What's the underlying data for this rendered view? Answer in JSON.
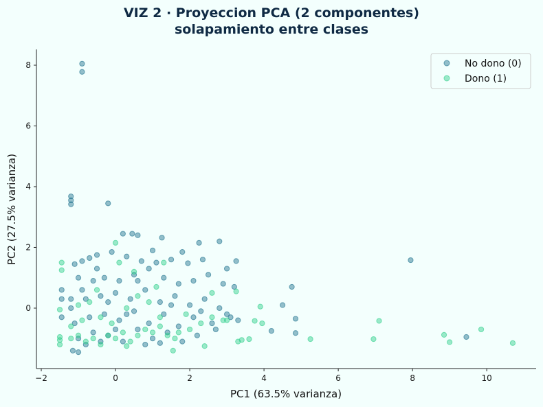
{
  "chart_data": {
    "type": "scatter",
    "title": "VIZ 2 · Proyeccion PCA (2 componentes)",
    "subtitle": "solapamiento entre clases",
    "x_label": "PC1 (63.5% varianza)",
    "y_label": "PC2 (27.5% varianza)",
    "xlim": [
      -2.13,
      11.33
    ],
    "ylim": [
      -1.99,
      8.52
    ],
    "xticks": [
      {
        "value": -2,
        "label": "−2"
      },
      0,
      2,
      4,
      6,
      8,
      10
    ],
    "yticks": [
      0,
      2,
      4,
      6,
      8
    ],
    "legend": "upper right",
    "series": [
      {
        "name": "No dono (0)",
        "color": "#1b6f8c",
        "x": [
          -0.9,
          -0.9,
          -1.2,
          -1.2,
          -1.2,
          -0.2,
          7.95,
          4.75,
          4.5,
          4.85,
          4.2,
          4.85,
          9.45,
          3.25,
          2.8,
          2.25,
          0.2,
          0.45,
          0.6,
          1.25,
          1.8,
          1.95,
          2.35,
          3.0,
          -1.0,
          -1.15,
          -1.45,
          -1.45,
          -1.45,
          -1.2,
          -1.1,
          -0.9,
          -0.7,
          -0.5,
          -0.1,
          0.3,
          0.7,
          1.0,
          1.5,
          -1.0,
          -0.6,
          -0.3,
          0.1,
          0.5,
          0.9,
          1.3,
          1.7,
          2.1,
          2.5,
          2.9,
          3.2,
          -1.2,
          -0.8,
          -0.4,
          0.0,
          0.4,
          0.8,
          1.2,
          1.6,
          2.0,
          2.4,
          2.8,
          3.1,
          -1.1,
          -0.7,
          -0.3,
          0.1,
          0.5,
          0.9,
          1.3,
          1.7,
          2.1,
          2.6,
          3.0,
          -1.0,
          -0.6,
          -0.2,
          0.2,
          0.6,
          1.0,
          1.4,
          1.8,
          2.2,
          2.7,
          -0.8,
          -0.4,
          0.0,
          0.8,
          1.2,
          -0.9,
          -0.2,
          0.3,
          1.5,
          2.3,
          3.3,
          0.6,
          -0.5,
          1.1
        ],
        "values": [
          8.05,
          7.78,
          3.68,
          3.55,
          3.42,
          3.45,
          1.58,
          0.7,
          0.1,
          -0.35,
          -0.75,
          -0.82,
          -0.95,
          1.55,
          2.2,
          2.15,
          2.45,
          2.45,
          2.4,
          2.32,
          1.85,
          1.48,
          1.6,
          1.3,
          -1.45,
          -1.4,
          0.6,
          0.3,
          -0.3,
          0.3,
          1.45,
          1.55,
          1.65,
          1.75,
          1.85,
          1.7,
          1.55,
          1.9,
          1.6,
          1.0,
          0.9,
          1.0,
          0.9,
          1.1,
          1.3,
          1.0,
          0.8,
          0.9,
          1.1,
          0.8,
          0.7,
          0.0,
          0.3,
          0.4,
          0.5,
          0.3,
          0.6,
          0.2,
          0.4,
          0.1,
          0.3,
          0.0,
          -0.3,
          -0.5,
          -0.3,
          -0.2,
          -0.4,
          -0.1,
          -0.5,
          -0.2,
          -0.6,
          -0.3,
          -0.5,
          -0.2,
          -1.0,
          -0.8,
          -0.9,
          -1.1,
          -0.7,
          -1.0,
          -0.8,
          -1.1,
          -0.9,
          -0.7,
          -1.2,
          -1.1,
          -0.7,
          -1.2,
          -1.15,
          0.6,
          0.2,
          -0.2,
          0.1,
          -0.1,
          -0.4,
          0.9,
          1.3,
          1.5
        ]
      },
      {
        "name": "Dono (1)",
        "color": "#2dce89",
        "x": [
          10.7,
          9.85,
          9.0,
          8.85,
          7.1,
          6.95,
          5.25,
          3.9,
          3.95,
          3.75,
          3.6,
          3.4,
          3.3,
          3.25,
          0.0,
          1.3,
          2.4,
          1.55,
          -1.45,
          -1.45,
          -1.5,
          -1.5,
          -1.5,
          -1.5,
          -1.2,
          -1.0,
          -0.8,
          -0.6,
          -0.4,
          -0.2,
          0.0,
          0.2,
          0.4,
          0.6,
          0.8,
          1.0,
          1.2,
          1.4,
          1.7,
          2.0,
          2.3,
          2.6,
          2.9,
          -1.0,
          -0.7,
          -0.4,
          -0.1,
          0.3,
          0.6,
          0.9,
          1.2,
          -0.9,
          -0.5,
          0.1,
          0.5,
          2.6,
          3.0,
          1.6,
          -1.2,
          0.3,
          1.9,
          1.1
        ],
        "values": [
          -1.15,
          -0.7,
          -1.12,
          -0.88,
          -0.42,
          -1.02,
          -1.02,
          0.05,
          -0.5,
          -0.42,
          -1.02,
          -1.05,
          -1.1,
          0.55,
          2.15,
          1.5,
          -1.25,
          -1.4,
          1.5,
          1.25,
          -0.05,
          -0.95,
          -1.05,
          -1.2,
          -1.0,
          -0.9,
          -1.1,
          -1.0,
          -1.2,
          -0.9,
          -1.0,
          -0.8,
          -1.1,
          -0.9,
          -0.7,
          -0.8,
          -0.6,
          -0.9,
          -0.8,
          -0.7,
          -0.5,
          -0.3,
          -0.4,
          0.1,
          0.2,
          -0.3,
          -0.5,
          0.0,
          0.4,
          0.2,
          -0.3,
          -0.4,
          0.6,
          1.5,
          1.2,
          0.5,
          -0.4,
          -1.0,
          -0.6,
          -1.25,
          -0.2,
          0.7
        ]
      }
    ]
  }
}
